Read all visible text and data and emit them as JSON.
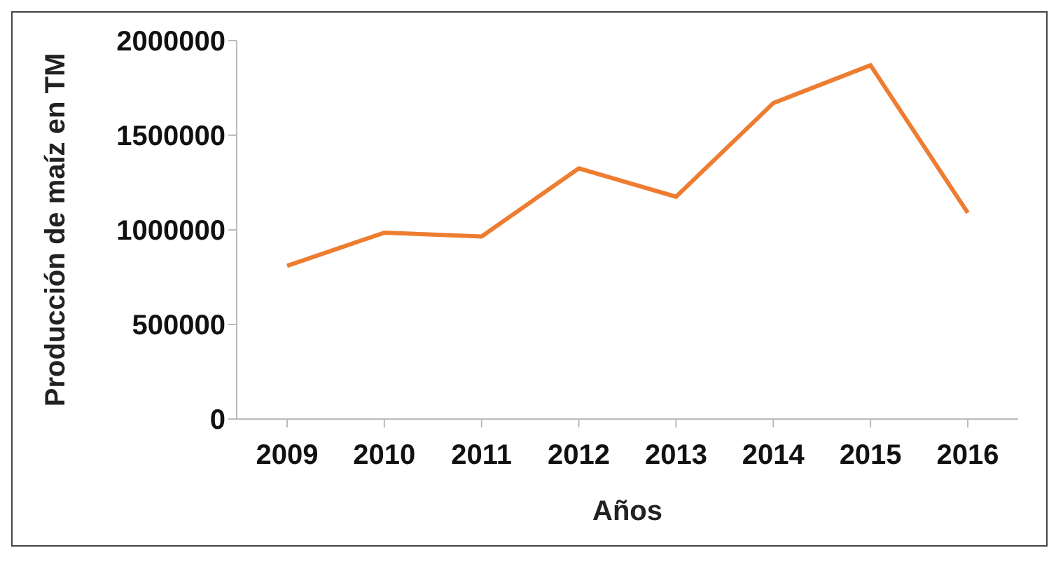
{
  "chart_data": {
    "type": "line",
    "xlabel": "Años",
    "ylabel": "Producción de maíz en TM",
    "categories": [
      "2009",
      "2010",
      "2011",
      "2012",
      "2013",
      "2014",
      "2015",
      "2016"
    ],
    "series": [
      {
        "color": "#ed7d31",
        "values": [
          810000,
          985000,
          965000,
          1325000,
          1175000,
          1670000,
          1870000,
          1090000
        ]
      }
    ],
    "ylim": [
      0,
      2000000
    ],
    "yticks": [
      0,
      500000,
      1000000,
      1500000,
      2000000
    ],
    "grid": false,
    "legend": false,
    "marker": "none",
    "line_style": "solid"
  }
}
